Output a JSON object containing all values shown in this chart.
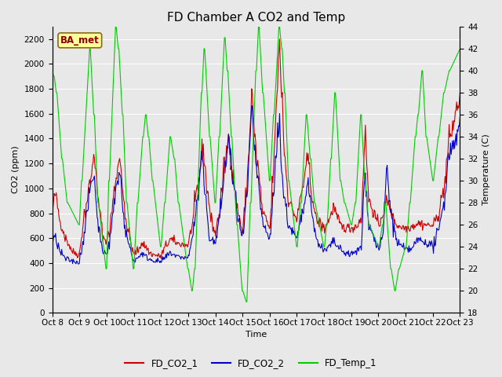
{
  "title": "FD Chamber A CO2 and Temp",
  "xlabel": "Time",
  "ylabel_left": "CO2 (ppm)",
  "ylabel_right": "Temperature (C)",
  "annotation_text": "BA_met",
  "annotation_bbox_facecolor": "#ffff99",
  "annotation_bbox_edgecolor": "#8B6914",
  "left_ylim": [
    0,
    2300
  ],
  "right_ylim": [
    18,
    44
  ],
  "left_yticks": [
    0,
    200,
    400,
    600,
    800,
    1000,
    1200,
    1400,
    1600,
    1800,
    2000,
    2200
  ],
  "right_yticks": [
    18,
    20,
    22,
    24,
    26,
    28,
    30,
    32,
    34,
    36,
    38,
    40,
    42,
    44
  ],
  "xtick_labels": [
    "Oct 8",
    "Oct 9",
    "Oct 10",
    "Oct 11",
    "Oct 12",
    "Oct 13",
    "Oct 14",
    "Oct 15",
    "Oct 16",
    "Oct 17",
    "Oct 18",
    "Oct 19",
    "Oct 20",
    "Oct 21",
    "Oct 22",
    "Oct 23"
  ],
  "xtick_labels_display": [
    "Oct 8",
    "Oct 9",
    "Oct 10",
    "Oct 11",
    "Oct 12",
    "Oct 13",
    "Oct 14",
    "Oct 15",
    "Oct 16",
    "Oct 17",
    "Oct 18",
    "Oct 19",
    "Oct 20",
    "Oct 21",
    "Oct 22",
    "Oct 23"
  ],
  "legend_labels": [
    "FD_CO2_1",
    "FD_CO2_2",
    "FD_Temp_1"
  ],
  "co2_1_color": "#cc0000",
  "co2_2_color": "#0000cc",
  "temp_color": "#00cc00",
  "background_color": "#e8e8e8",
  "plot_bg_color": "#e8e8e8",
  "grid_color": "#ffffff",
  "title_fontsize": 11,
  "label_fontsize": 8,
  "tick_fontsize": 7.5,
  "linewidth": 0.8
}
